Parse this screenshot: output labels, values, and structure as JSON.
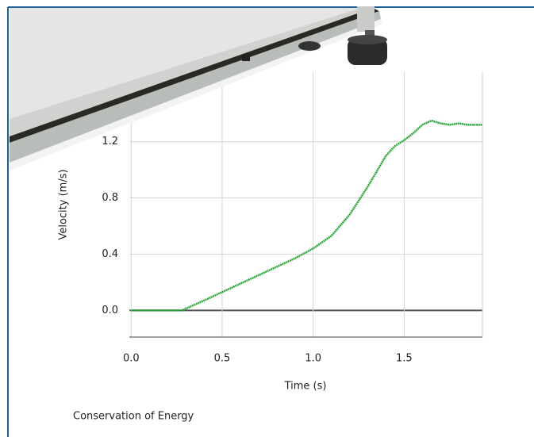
{
  "chart_data": {
    "type": "line",
    "caption": "Conservation of Energy",
    "xlabel": "Time (s)",
    "ylabel": "Velocity (m/s)",
    "x": [
      0,
      0.1,
      0.2,
      0.28,
      0.4,
      0.5,
      0.6,
      0.7,
      0.8,
      0.9,
      1.0,
      1.1,
      1.2,
      1.3,
      1.4,
      1.45,
      1.5,
      1.55,
      1.6,
      1.65,
      1.7,
      1.75,
      1.8,
      1.85,
      1.93
    ],
    "series": [
      {
        "color": "#2ea83a",
        "values": [
          0,
          0,
          0,
          0,
          0.07,
          0.13,
          0.19,
          0.25,
          0.31,
          0.37,
          0.44,
          0.53,
          0.68,
          0.88,
          1.1,
          1.17,
          1.21,
          1.26,
          1.32,
          1.35,
          1.33,
          1.32,
          1.33,
          1.32,
          1.32
        ]
      }
    ],
    "xlim": [
      -0.01,
      1.93
    ],
    "ylim": [
      -0.19,
      1.7
    ],
    "xticks": [
      {
        "value": 0,
        "label": "0.0"
      },
      0.5,
      {
        "value": 1,
        "label": "1.0"
      },
      1.5
    ],
    "yticks": [
      {
        "value": 0,
        "label": "0.0"
      },
      0.4,
      0.8,
      1.2
    ],
    "grid": true
  }
}
